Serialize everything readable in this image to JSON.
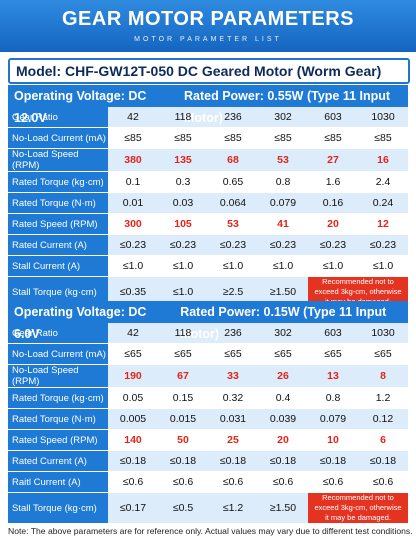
{
  "header": {
    "title": "GEAR MOTOR PARAMETERS",
    "subtitle": "MOTOR PARAMETER LIST"
  },
  "model": "Model: CHF-GW12T-050 DC Geared Motor (Worm Gear)",
  "sections": [
    {
      "voltage": "Operating Voltage: DC 12.0V",
      "power": "Rated Power: 0.55W (Type 11 Input Motor)",
      "rows": [
        {
          "label": "Gear Ratio",
          "cells": [
            "42",
            "118",
            "236",
            "302",
            "603",
            "1030"
          ]
        },
        {
          "label": "No-Load Current (mA)",
          "cells": [
            "≤85",
            "≤85",
            "≤85",
            "≤85",
            "≤85",
            "≤85"
          ]
        },
        {
          "label": "No-Load Speed (RPM)",
          "highlight": true,
          "cells": [
            "380",
            "135",
            "68",
            "53",
            "27",
            "16"
          ]
        },
        {
          "label": "Rated Torque (kg·cm)",
          "cells": [
            "0.1",
            "0.3",
            "0.65",
            "0.8",
            "1.6",
            "2.4"
          ]
        },
        {
          "label": "Rated Torque (N·m)",
          "cells": [
            "0.01",
            "0.03",
            "0.064",
            "0.079",
            "0.16",
            "0.24"
          ]
        },
        {
          "label": "Rated Speed (RPM)",
          "highlight": true,
          "cells": [
            "300",
            "105",
            "53",
            "41",
            "20",
            "12"
          ]
        },
        {
          "label": "Rated Current (A)",
          "cells": [
            "≤0.23",
            "≤0.23",
            "≤0.23",
            "≤0.23",
            "≤0.23",
            "≤0.23"
          ]
        },
        {
          "label": "Stall Current (A)",
          "cells": [
            "≤1.0",
            "≤1.0",
            "≤1.0",
            "≤1.0",
            "≤1.0",
            "≤1.0"
          ]
        },
        {
          "label": "Stall Torque (kg·cm)",
          "cells": [
            "≤0.35",
            "≤1.0",
            "≥2.5",
            "≥1.50"
          ],
          "note": "Recommended not to exceed 3kg-cm, otherwise it may be damaged."
        }
      ]
    },
    {
      "voltage": "Operating Voltage: DC 6.0V",
      "power": "Rated Power: 0.15W (Type 11 Input Motor)",
      "rows": [
        {
          "label": "Gear Ratio",
          "cells": [
            "42",
            "118",
            "236",
            "302",
            "603",
            "1030"
          ]
        },
        {
          "label": "No-Load Current (mA)",
          "cells": [
            "≤65",
            "≤65",
            "≤65",
            "≤65",
            "≤65",
            "≤65"
          ]
        },
        {
          "label": "No-Load Speed (RPM)",
          "highlight": true,
          "cells": [
            "190",
            "67",
            "33",
            "26",
            "13",
            "8"
          ]
        },
        {
          "label": "Rated Torque (kg·cm)",
          "cells": [
            "0.05",
            "0.15",
            "0.32",
            "0.4",
            "0.8",
            "1.2"
          ]
        },
        {
          "label": "Rated Torque (N·m)",
          "cells": [
            "0.005",
            "0.015",
            "0.031",
            "0.039",
            "0.079",
            "0.12"
          ]
        },
        {
          "label": "Rated Speed (RPM)",
          "highlight": true,
          "cells": [
            "140",
            "50",
            "25",
            "20",
            "10",
            "6"
          ]
        },
        {
          "label": "Rated Current (A)",
          "cells": [
            "≤0.18",
            "≤0.18",
            "≤0.18",
            "≤0.18",
            "≤0.18",
            "≤0.18"
          ]
        },
        {
          "label": "Raitl Current (A)",
          "cells": [
            "≤0.6",
            "≤0.6",
            "≤0.6",
            "≤0.6",
            "≤0.6",
            "≤0.6"
          ]
        },
        {
          "label": "Stall Torque (kg·cm)",
          "cells": [
            "≤0.17",
            "≤0.5",
            "≤1.2",
            "≥1.50"
          ],
          "note": "Recommended not to exceed 3kg-cm, otherwise it may be damaged."
        }
      ]
    }
  ],
  "footnote": "Note: The above parameters are for reference only. Actual values may vary due to different test conditions."
}
